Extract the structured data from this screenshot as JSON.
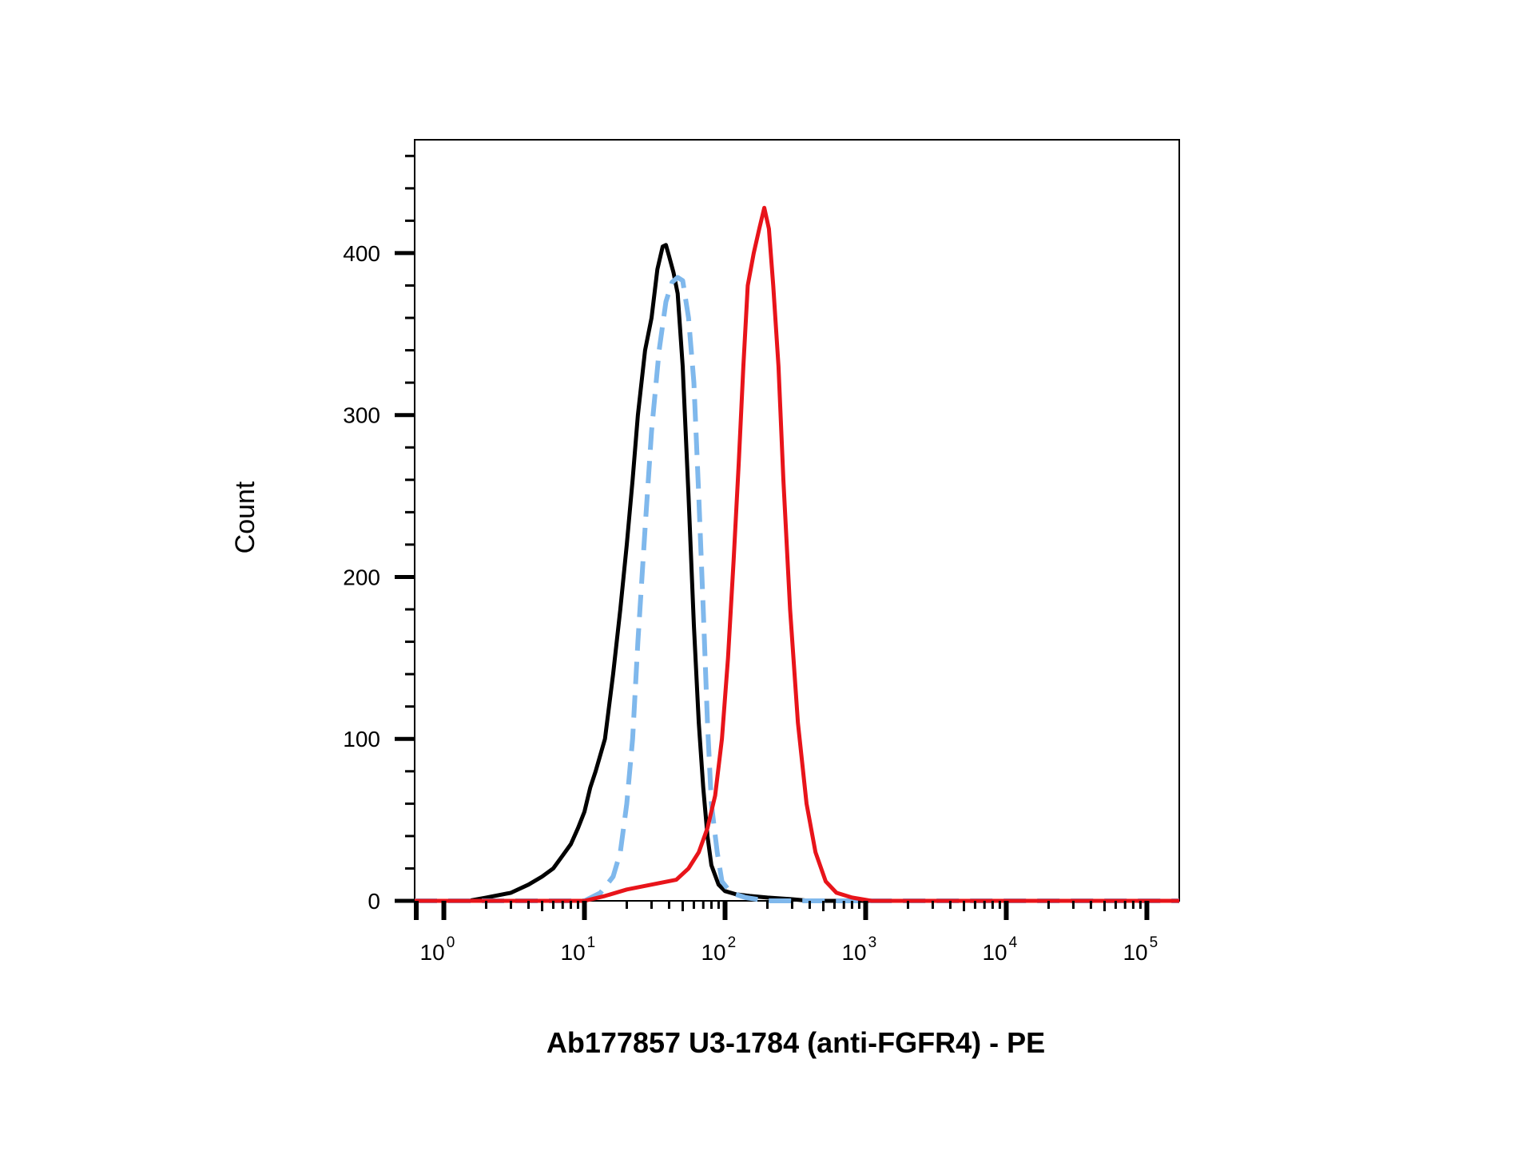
{
  "chart_data": {
    "type": "line",
    "title": "",
    "xlabel": "Ab177857 U3-1784 (anti-FGFR4) - PE",
    "ylabel": "Count",
    "x_scale": "log",
    "xlim": [
      0.62,
      170000
    ],
    "ylim": [
      0,
      470
    ],
    "grid": false,
    "legend": "none",
    "y_ticks": [
      0,
      100,
      200,
      300,
      400
    ],
    "y_tick_labels": [
      "0",
      "100",
      "200",
      "300",
      "400"
    ],
    "x_ticks": [
      1,
      10,
      100,
      1000,
      10000,
      100000
    ],
    "x_tick_labels": [
      {
        "base": "10",
        "exp": "0"
      },
      {
        "base": "10",
        "exp": "1"
      },
      {
        "base": "10",
        "exp": "2"
      },
      {
        "base": "10",
        "exp": "3"
      },
      {
        "base": "10",
        "exp": "4"
      },
      {
        "base": "10",
        "exp": "5"
      }
    ],
    "series": [
      {
        "color": "#000000",
        "style": "solid",
        "points": [
          [
            0.62,
            0
          ],
          [
            1.5,
            0
          ],
          [
            2.0,
            2
          ],
          [
            3.0,
            5
          ],
          [
            4.0,
            10
          ],
          [
            5.0,
            15
          ],
          [
            6.0,
            20
          ],
          [
            7.0,
            28
          ],
          [
            8.0,
            35
          ],
          [
            9.0,
            45
          ],
          [
            10.0,
            55
          ],
          [
            11.0,
            70
          ],
          [
            12.0,
            80
          ],
          [
            14.0,
            100
          ],
          [
            16.0,
            140
          ],
          [
            18.0,
            180
          ],
          [
            20.0,
            220
          ],
          [
            22.0,
            260
          ],
          [
            24.0,
            300
          ],
          [
            27.0,
            340
          ],
          [
            30.0,
            360
          ],
          [
            33.0,
            390
          ],
          [
            36.0,
            404
          ],
          [
            38.0,
            405
          ],
          [
            40.0,
            398
          ],
          [
            43.0,
            388
          ],
          [
            46.0,
            375
          ],
          [
            50.0,
            330
          ],
          [
            55.0,
            250
          ],
          [
            60.0,
            170
          ],
          [
            65.0,
            110
          ],
          [
            70.0,
            70
          ],
          [
            75.0,
            40
          ],
          [
            80.0,
            22
          ],
          [
            90.0,
            10
          ],
          [
            100.0,
            6
          ],
          [
            120.0,
            4
          ],
          [
            150.0,
            3
          ],
          [
            200.0,
            2
          ],
          [
            300.0,
            1
          ],
          [
            400.0,
            0
          ],
          [
            170000,
            0
          ]
        ]
      },
      {
        "color": "#7fb8ec",
        "style": "dashed",
        "points": [
          [
            0.62,
            0
          ],
          [
            10.0,
            0
          ],
          [
            13.0,
            5
          ],
          [
            16.0,
            15
          ],
          [
            18.0,
            30
          ],
          [
            20.0,
            60
          ],
          [
            22.0,
            100
          ],
          [
            24.0,
            160
          ],
          [
            27.0,
            230
          ],
          [
            30.0,
            290
          ],
          [
            34.0,
            340
          ],
          [
            38.0,
            370
          ],
          [
            42.0,
            382
          ],
          [
            46.0,
            385
          ],
          [
            50.0,
            383
          ],
          [
            55.0,
            360
          ],
          [
            60.0,
            320
          ],
          [
            65.0,
            250
          ],
          [
            70.0,
            180
          ],
          [
            75.0,
            110
          ],
          [
            80.0,
            60
          ],
          [
            88.0,
            30
          ],
          [
            95.0,
            12
          ],
          [
            110.0,
            5
          ],
          [
            140.0,
            2
          ],
          [
            200.0,
            0
          ],
          [
            170000,
            0
          ]
        ]
      },
      {
        "color": "#e8141a",
        "style": "solid",
        "points": [
          [
            0.62,
            0
          ],
          [
            10.0,
            0
          ],
          [
            14.0,
            3
          ],
          [
            20.0,
            7
          ],
          [
            30.0,
            10
          ],
          [
            45.0,
            13
          ],
          [
            55.0,
            20
          ],
          [
            65.0,
            30
          ],
          [
            75.0,
            45
          ],
          [
            85.0,
            65
          ],
          [
            95.0,
            100
          ],
          [
            105.0,
            150
          ],
          [
            115.0,
            210
          ],
          [
            125.0,
            270
          ],
          [
            135.0,
            330
          ],
          [
            145.0,
            380
          ],
          [
            160.0,
            400
          ],
          [
            175.0,
            415
          ],
          [
            190.0,
            428
          ],
          [
            205.0,
            415
          ],
          [
            220.0,
            380
          ],
          [
            240.0,
            330
          ],
          [
            260.0,
            260
          ],
          [
            290.0,
            180
          ],
          [
            330.0,
            110
          ],
          [
            380.0,
            60
          ],
          [
            440.0,
            30
          ],
          [
            520.0,
            12
          ],
          [
            620.0,
            5
          ],
          [
            800.0,
            2
          ],
          [
            1100.0,
            0
          ],
          [
            170000,
            0
          ]
        ]
      }
    ]
  }
}
